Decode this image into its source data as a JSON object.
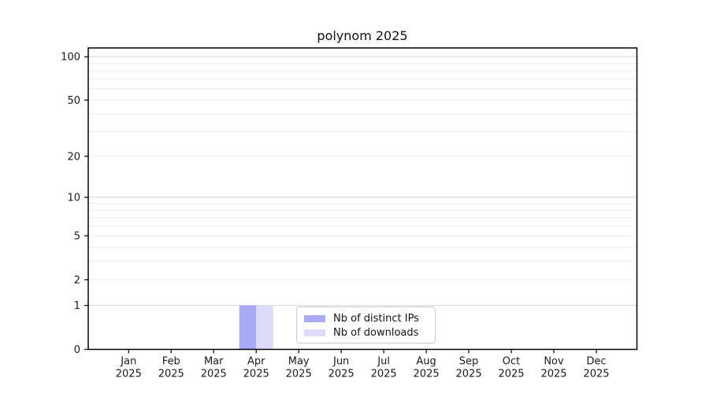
{
  "figure": {
    "title": "polynom 2025"
  },
  "chart_data": {
    "type": "bar",
    "title": "polynom 2025",
    "categories": [
      "Jan 2025",
      "Feb 2025",
      "Mar 2025",
      "Apr 2025",
      "May 2025",
      "Jun 2025",
      "Jul 2025",
      "Aug 2025",
      "Sep 2025",
      "Oct 2025",
      "Nov 2025",
      "Dec 2025"
    ],
    "series": [
      {
        "name": "Nb of distinct IPs",
        "color": "#a9a9f6",
        "values": [
          0,
          0,
          0,
          1,
          0,
          0,
          0,
          0,
          0,
          0,
          0,
          0
        ]
      },
      {
        "name": "Nb of downloads",
        "color": "#dcdcf8",
        "values": [
          0,
          0,
          0,
          1,
          0,
          0,
          0,
          0,
          0,
          0,
          0,
          0
        ]
      }
    ],
    "xlabel": "",
    "ylabel": "",
    "y_scale": "log1p",
    "ylim": [
      0,
      115
    ],
    "y_ticks": [
      0,
      1,
      2,
      5,
      10,
      20,
      50,
      100
    ],
    "y_minor_gridlines": [
      1,
      2,
      3,
      4,
      5,
      6,
      7,
      8,
      9,
      10,
      20,
      30,
      40,
      50,
      60,
      70,
      80,
      90,
      100
    ],
    "y_major_gridlines": [
      1,
      10,
      100
    ],
    "grid": "horizontal",
    "legend_position": "lower center",
    "colors": {
      "axis": "#000000",
      "tick_text": "#1a1a1a",
      "major_grid": "#d3d3d3",
      "minor_grid": "#ededed",
      "background": "#ffffff"
    }
  }
}
